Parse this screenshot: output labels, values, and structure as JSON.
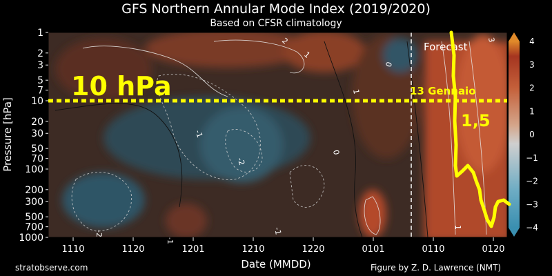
{
  "title": "GFS Northern Annular Mode Index (2019/2020)",
  "subtitle": "Based on CFSR climatology",
  "credits": {
    "left": "stratobserve.com",
    "right": "Figure by Z. D. Lawrence (NMT)"
  },
  "chart_data": {
    "type": "heatmap",
    "title": "GFS Northern Annular Mode Index (2019/2020)",
    "subtitle": "Based on CFSR climatology",
    "xlabel": "Date (MMDD)",
    "ylabel": "Pressure [hPa]",
    "x_ticks": [
      "1110",
      "1120",
      "1201",
      "1210",
      "1220",
      "0101",
      "0110",
      "0120"
    ],
    "y_ticks": [
      1,
      2,
      3,
      5,
      7,
      10,
      20,
      30,
      50,
      70,
      100,
      200,
      300,
      500,
      700,
      1000
    ],
    "y_scale": "log",
    "ylim": [
      1000,
      1
    ],
    "colorbar": {
      "ticks": [
        4,
        3,
        2,
        1,
        0,
        -1,
        -2,
        -3,
        -4
      ],
      "range": [
        -4,
        4
      ],
      "colormap": [
        "#3a8fb0",
        "#6dacc4",
        "#d9d9d9",
        "#d49a7a",
        "#c8603a",
        "#b23a22",
        "#e08a2a"
      ]
    },
    "colors": {
      "positive": "#b9542f",
      "negative": "#2f5a6e",
      "neutral": "#3b2a25",
      "annotation": "#ffff00"
    },
    "forecast_label": "Forecast",
    "contour_labels": [
      "0",
      "-1",
      "-2",
      "1",
      "2",
      "3",
      "-1",
      "0",
      "1",
      "-2",
      "-1",
      "1"
    ],
    "annotations": {
      "level_label": "10 hPa",
      "date_label": "13 Gennaio",
      "value_label": "1,5"
    }
  }
}
